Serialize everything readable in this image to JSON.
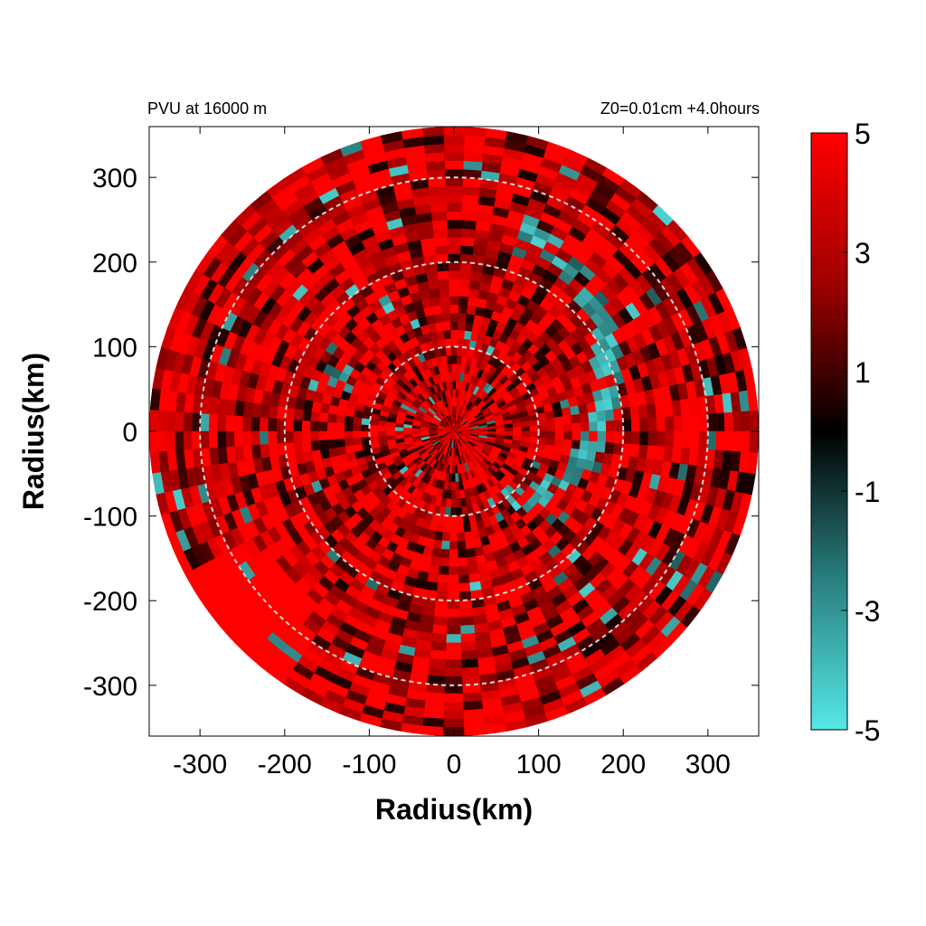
{
  "chart_data": {
    "type": "heatmap",
    "title_left": "PVU at 16000 m",
    "title_right": "Z0=0.01cm  +4.0hours",
    "xlabel": "Radius(km)",
    "ylabel": "Radius(km)",
    "xlim": [
      -360,
      360
    ],
    "ylim": [
      -360,
      360
    ],
    "xticks": [
      "-300",
      "-200",
      "-100",
      "0",
      "100",
      "200",
      "300"
    ],
    "yticks": [
      "300",
      "200",
      "100",
      "0",
      "-100",
      "-200",
      "-300"
    ],
    "domain_radius_km": 360,
    "dashed_circles_km": [
      100,
      200,
      300
    ],
    "colorbar": {
      "min": -5,
      "max": 5,
      "labels": [
        "5",
        "3",
        "1",
        "-1",
        "-3",
        "-5"
      ],
      "colors": [
        "#ff0000",
        "#000000",
        "#55e8e8"
      ]
    },
    "features": {
      "background_value": 4,
      "positive_patch_center_km": [
        -260,
        -230
      ],
      "negative_band_desc": "spiral band of negative PVU from center toward upper right"
    }
  }
}
